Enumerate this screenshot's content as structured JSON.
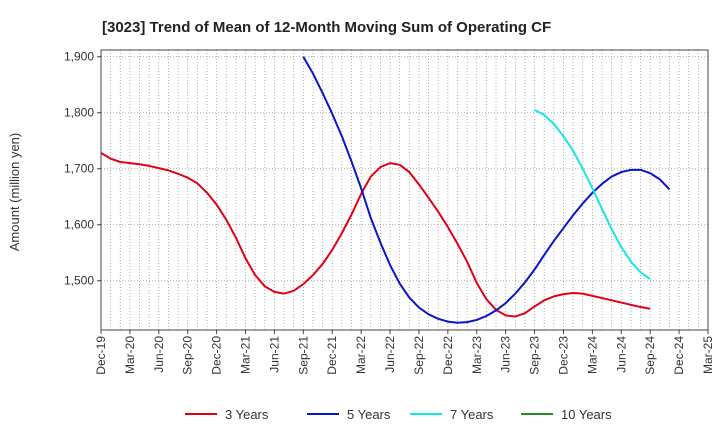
{
  "chart_data": {
    "type": "line",
    "title": "[3023]  Trend of Mean of 12-Month Moving Sum of Operating CF",
    "xlabel": "",
    "ylabel": "Amount (million yen)",
    "ylim": [
      1412,
      1912
    ],
    "yticks": [
      1500,
      1600,
      1700,
      1800,
      1900
    ],
    "ytick_labels": [
      "1,500",
      "1,600",
      "1,700",
      "1,800",
      "1,900"
    ],
    "x_tick_labels": [
      "Dec-19",
      "Mar-20",
      "Jun-20",
      "Sep-20",
      "Dec-20",
      "Mar-21",
      "Jun-21",
      "Sep-21",
      "Dec-21",
      "Mar-22",
      "Jun-22",
      "Sep-22",
      "Dec-22",
      "Mar-23",
      "Jun-23",
      "Sep-23",
      "Dec-23",
      "Mar-24",
      "Jun-24",
      "Sep-24",
      "Dec-24",
      "Mar-25"
    ],
    "x_start": "Dec-19",
    "grid": true,
    "legend_position": "bottom",
    "series": [
      {
        "name": "3 Years",
        "color": "#e0001b",
        "start_index": 0,
        "values": [
          1728,
          1718,
          1712,
          1710,
          1708,
          1705,
          1701,
          1697,
          1691,
          1684,
          1674,
          1657,
          1636,
          1609,
          1577,
          1540,
          1510,
          1490,
          1480,
          1477,
          1482,
          1494,
          1510,
          1530,
          1555,
          1585,
          1618,
          1655,
          1686,
          1703,
          1710,
          1707,
          1694,
          1672,
          1648,
          1623,
          1596,
          1566,
          1534,
          1496,
          1467,
          1448,
          1438,
          1436,
          1442,
          1454,
          1465,
          1472,
          1476,
          1478,
          1477,
          1473,
          1469,
          1465,
          1461,
          1457,
          1453,
          1450
        ]
      },
      {
        "name": "5 Years",
        "color": "#0a14c8",
        "start_index": 21,
        "values": [
          1900,
          1870,
          1835,
          1798,
          1758,
          1713,
          1665,
          1612,
          1568,
          1528,
          1495,
          1470,
          1452,
          1440,
          1432,
          1427,
          1425,
          1426,
          1430,
          1437,
          1447,
          1460,
          1477,
          1497,
          1520,
          1546,
          1571,
          1594,
          1617,
          1638,
          1657,
          1673,
          1686,
          1694,
          1698,
          1698,
          1692,
          1681,
          1663
        ]
      },
      {
        "name": "7 Years",
        "color": "#16e6e6",
        "start_index": 45,
        "values": [
          1805,
          1796,
          1780,
          1758,
          1732,
          1700,
          1665,
          1628,
          1592,
          1560,
          1534,
          1515,
          1503
        ]
      },
      {
        "name": "10 Years",
        "color": "#2b8a2b",
        "start_index": 0,
        "values": []
      }
    ]
  }
}
